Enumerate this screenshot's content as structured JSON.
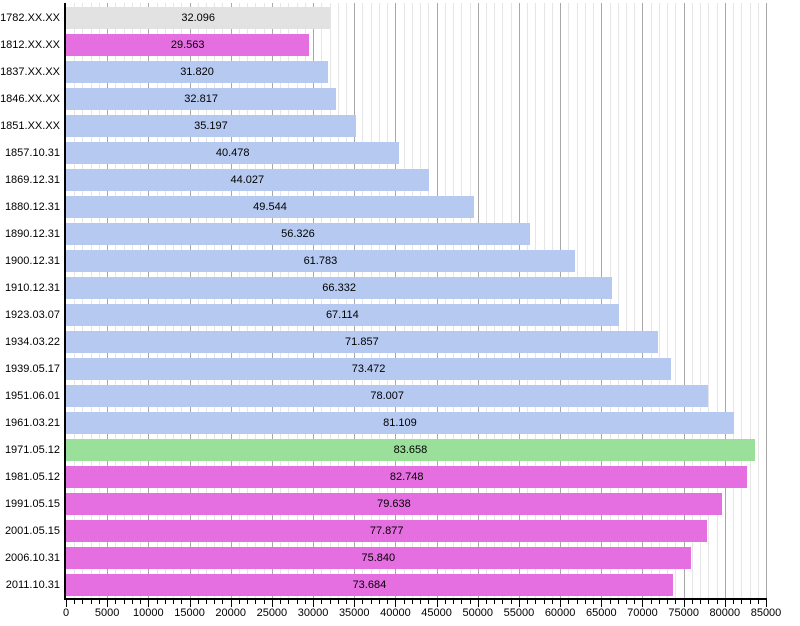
{
  "chart_data": {
    "type": "bar",
    "orientation": "horizontal",
    "title": "",
    "xlabel": "",
    "ylabel": "",
    "xlim": [
      0,
      85000
    ],
    "x_major_step": 5000,
    "x_minor_step": 1000,
    "grid": "vertical, minor and major",
    "x_tick_labels": [
      "0",
      "5000",
      "10000",
      "15000",
      "20000",
      "25000",
      "30000",
      "35000",
      "40000",
      "45000",
      "50000",
      "55000",
      "60000",
      "65000",
      "70000",
      "75000",
      "80000",
      "85000"
    ],
    "palette": {
      "gray": "#e2e2e2",
      "magenta": "#e56fe0",
      "blue": "#b6c9f1",
      "green": "#9ae09a"
    },
    "categories": [
      "1782.XX.XX",
      "1812.XX.XX",
      "1837.XX.XX",
      "1846.XX.XX",
      "1851.XX.XX",
      "1857.10.31",
      "1869.12.31",
      "1880.12.31",
      "1890.12.31",
      "1900.12.31",
      "1910.12.31",
      "1923.03.07",
      "1934.03.22",
      "1939.05.17",
      "1951.06.01",
      "1961.03.21",
      "1971.05.12",
      "1981.05.12",
      "1991.05.15",
      "2001.05.15",
      "2006.10.31",
      "2011.10.31"
    ],
    "values": [
      32096,
      29563,
      31820,
      32817,
      35197,
      40478,
      44027,
      49544,
      56326,
      61783,
      66332,
      67114,
      71857,
      73472,
      78007,
      81109,
      83658,
      82748,
      79638,
      77877,
      75840,
      73684
    ],
    "value_labels": [
      "32.096",
      "29.563",
      "31.820",
      "32.817",
      "35.197",
      "40.478",
      "44.027",
      "49.544",
      "56.326",
      "61.783",
      "66.332",
      "67.114",
      "71.857",
      "73.472",
      "78.007",
      "81.109",
      "83.658",
      "82.748",
      "79.638",
      "77.877",
      "75.840",
      "73.684"
    ],
    "bar_color_keys": [
      "gray",
      "magenta",
      "blue",
      "blue",
      "blue",
      "blue",
      "blue",
      "blue",
      "blue",
      "blue",
      "blue",
      "blue",
      "blue",
      "blue",
      "blue",
      "blue",
      "green",
      "magenta",
      "magenta",
      "magenta",
      "magenta",
      "magenta"
    ]
  }
}
